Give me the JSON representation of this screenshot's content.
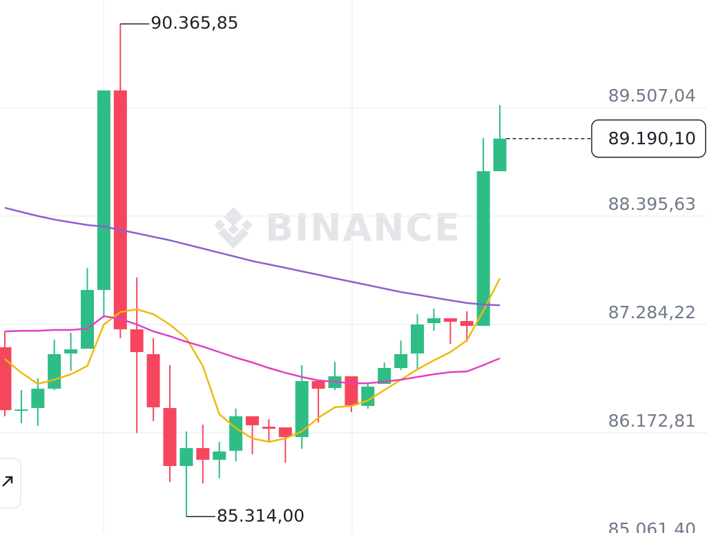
{
  "chart_data": {
    "type": "candlestick",
    "watermark": "BINANCE",
    "up_color": "#2ebd85",
    "down_color": "#f6465d",
    "ylim": [
      85146.2,
      90611.4
    ],
    "yticks": [
      {
        "value": 89507.04,
        "label": "89.507,04"
      },
      {
        "value": 88395.63,
        "label": "88.395,63"
      },
      {
        "value": 87284.22,
        "label": "87.284,22"
      },
      {
        "value": 86172.81,
        "label": "86.172,81"
      },
      {
        "value": 85061.4,
        "label": "85.061,40"
      }
    ],
    "grid": true,
    "ohlc": [
      [
        87051,
        87213,
        86343,
        86406
      ],
      [
        86399,
        86612,
        86272,
        86413
      ],
      [
        86428,
        86732,
        86244,
        86626
      ],
      [
        86626,
        87128,
        86612,
        86980
      ],
      [
        86987,
        87199,
        86810,
        87029
      ],
      [
        87036,
        87865,
        87036,
        87638
      ],
      [
        87638,
        89684,
        87355,
        89684
      ],
      [
        89684,
        90365.85,
        87143,
        87235
      ],
      [
        87235,
        87766,
        86173,
        87001
      ],
      [
        86980,
        87143,
        86293,
        86435
      ],
      [
        86428,
        86867,
        85670,
        85833
      ],
      [
        85833,
        86187,
        85314,
        86017
      ],
      [
        86017,
        86258,
        85656,
        85897
      ],
      [
        85897,
        86081,
        85706,
        85982
      ],
      [
        85989,
        86421,
        85882,
        86343
      ],
      [
        86343,
        86343,
        85953,
        86251
      ],
      [
        86236,
        86314,
        86081,
        86215
      ],
      [
        86229,
        86229,
        85868,
        86130
      ],
      [
        86130,
        86867,
        86010,
        86704
      ],
      [
        86704,
        86704,
        86279,
        86626
      ],
      [
        86633,
        86902,
        86612,
        86753
      ],
      [
        86753,
        86753,
        86385,
        86456
      ],
      [
        86449,
        86682,
        86421,
        86647
      ],
      [
        86675,
        86895,
        86675,
        86838
      ],
      [
        86838,
        87121,
        86817,
        86980
      ],
      [
        86987,
        87390,
        86824,
        87284
      ],
      [
        87298,
        87447,
        87220,
        87348
      ],
      [
        87348,
        87348,
        87086,
        87312
      ],
      [
        87320,
        87419,
        87107,
        87270
      ],
      [
        87270,
        89196,
        87270,
        88856
      ],
      [
        88856,
        89535,
        88856,
        89190.1
      ]
    ],
    "lines": [
      {
        "color": "#f0b90b",
        "values": [
          86930,
          86789,
          86675,
          86718,
          86774,
          86859,
          87284,
          87412,
          87440,
          87390,
          87284,
          87143,
          86859,
          86364,
          86222,
          86116,
          86081,
          86116,
          86187,
          86328,
          86435,
          86449,
          86505,
          86612,
          86718,
          86824,
          86916,
          87001,
          87121,
          87426,
          87758
        ]
      },
      {
        "color": "#e040c0",
        "values": [
          87213,
          87220,
          87220,
          87228,
          87228,
          87242,
          87369,
          87341,
          87284,
          87213,
          87164,
          87107,
          87058,
          87001,
          86944,
          86895,
          86838,
          86789,
          86746,
          86711,
          86697,
          86682,
          86682,
          86697,
          86718,
          86746,
          86774,
          86796,
          86803,
          86867,
          86937
        ]
      },
      {
        "color": "#8e5fd0",
        "values": [
          88481,
          88438,
          88396,
          88360,
          88332,
          88304,
          88289,
          88254,
          88219,
          88183,
          88148,
          88105,
          88063,
          88020,
          87978,
          87935,
          87900,
          87865,
          87829,
          87794,
          87758,
          87723,
          87688,
          87652,
          87617,
          87589,
          87560,
          87532,
          87504,
          87489,
          87482
        ]
      }
    ],
    "high_label": {
      "value": 90365.85,
      "label": "90.365,85"
    },
    "low_label": {
      "value": 85314.0,
      "label": "85.314,00"
    },
    "last_price": {
      "value": 89190.1,
      "label": "89.190,10"
    }
  }
}
